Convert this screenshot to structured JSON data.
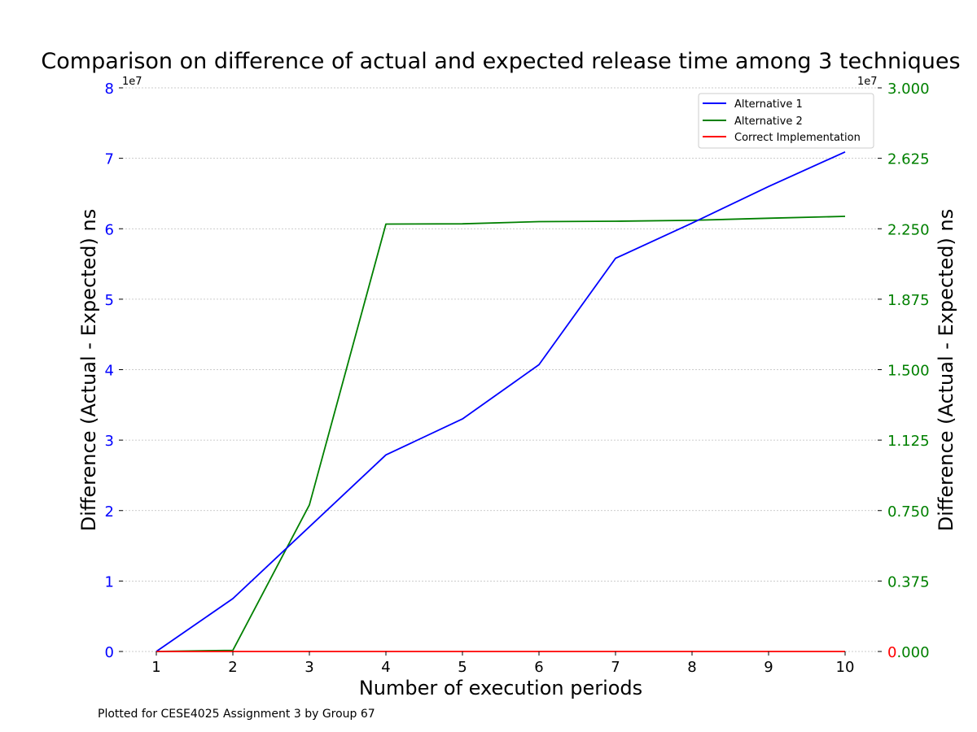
{
  "chart_data": {
    "type": "line",
    "title": "Comparison on difference of actual and expected release time among 3 techniques",
    "xlabel": "Number of execution periods",
    "ylabel_left": "Difference (Actual - Expected) ns",
    "ylabel_right": "Difference (Actual - Expected) ns",
    "footer": "Plotted for CESE4025 Assignment 3 by Group 67",
    "x": [
      1,
      2,
      3,
      4,
      5,
      6,
      7,
      8,
      9,
      10
    ],
    "xlim": [
      1,
      10
    ],
    "x_ticks": [
      "1",
      "2",
      "3",
      "4",
      "5",
      "6",
      "7",
      "8",
      "9",
      "10"
    ],
    "left_axis": {
      "ylim": [
        0,
        80000000
      ],
      "tick_values": [
        0,
        10000000,
        20000000,
        30000000,
        40000000,
        50000000,
        60000000,
        70000000,
        80000000
      ],
      "tick_labels": [
        "0",
        "1",
        "2",
        "3",
        "4",
        "5",
        "6",
        "7",
        "8"
      ],
      "multiplier": "1e7",
      "color": "#0000ff"
    },
    "right_axis": {
      "ylim": [
        0,
        30000000
      ],
      "tick_values": [
        0,
        3750000,
        7500000,
        11250000,
        15000000,
        18750000,
        22500000,
        26250000,
        30000000
      ],
      "tick_labels": [
        "0.000",
        "0.375",
        "0.750",
        "1.125",
        "1.500",
        "1.875",
        "2.250",
        "2.625",
        "3.000"
      ],
      "multiplier": "1e7",
      "color": "#008000",
      "first_tick_color": "#ff0000"
    },
    "grid": true,
    "legend_position": "top-right",
    "series": [
      {
        "name": "Alternative 1",
        "axis": "left",
        "color": "#0000ff",
        "values": [
          0,
          7500000,
          17700000,
          27900000,
          33000000,
          40700000,
          55800000,
          60800000,
          66000000,
          70900000
        ]
      },
      {
        "name": "Alternative 2",
        "axis": "right",
        "color": "#008000",
        "values": [
          0,
          60000,
          7800000,
          22750000,
          22760000,
          22880000,
          22900000,
          22950000,
          23060000,
          23160000
        ]
      },
      {
        "name": "Correct Implementation",
        "axis": "right",
        "color": "#ff0000",
        "values": [
          0,
          0,
          0,
          0,
          0,
          0,
          0,
          0,
          0,
          0
        ]
      }
    ]
  }
}
